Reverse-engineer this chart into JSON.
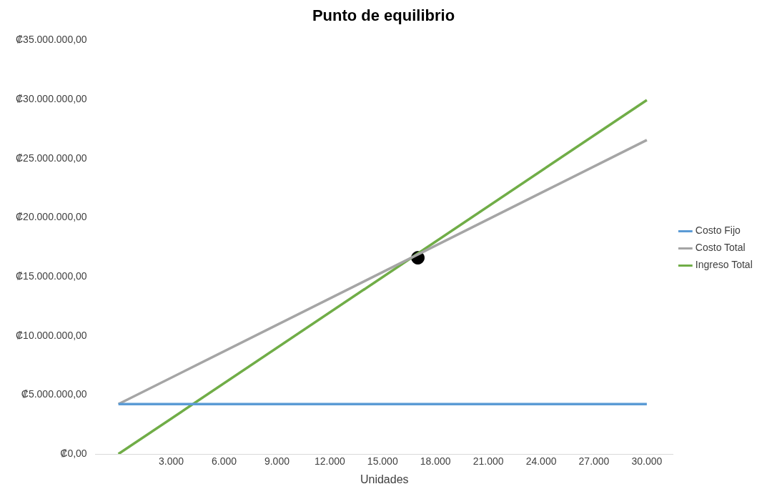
{
  "chart_data": {
    "type": "line",
    "title": "Punto de equilibrio",
    "xlabel": "Unidades",
    "xlim": [
      -1300,
      31500
    ],
    "xticks": [
      {
        "value": 3000,
        "label": "3.000"
      },
      {
        "value": 6000,
        "label": "6.000"
      },
      {
        "value": 9000,
        "label": "9.000"
      },
      {
        "value": 12000,
        "label": "12.000"
      },
      {
        "value": 15000,
        "label": "15.000"
      },
      {
        "value": 18000,
        "label": "18.000"
      },
      {
        "value": 21000,
        "label": "21.000"
      },
      {
        "value": 24000,
        "label": "24.000"
      },
      {
        "value": 27000,
        "label": "27.000"
      },
      {
        "value": 30000,
        "label": "30.000"
      }
    ],
    "ylim": [
      0,
      35000000
    ],
    "yticks": [
      {
        "value": 0,
        "label": "₡0,00"
      },
      {
        "value": 5000000,
        "label": "₡5.000.000,00"
      },
      {
        "value": 10000000,
        "label": "₡10.000.000,00"
      },
      {
        "value": 15000000,
        "label": "₡15.000.000,00"
      },
      {
        "value": 20000000,
        "label": "₡20.000.000,00"
      },
      {
        "value": 25000000,
        "label": "₡25.000.000,00"
      },
      {
        "value": 30000000,
        "label": "₡30.000.000,00"
      },
      {
        "value": 35000000,
        "label": "₡35.000.000,00"
      }
    ],
    "grid": false,
    "legend": "right",
    "marker": "none",
    "line_style": "solid",
    "series": [
      {
        "name": "Costo Fijo",
        "color": "#5b9bd5",
        "x": [
          0,
          30000
        ],
        "values": [
          4220000,
          4220000
        ]
      },
      {
        "name": "Costo Total",
        "color": "#a5a5a5",
        "x": [
          0,
          30000
        ],
        "values": [
          4220000,
          26560000
        ]
      },
      {
        "name": "Ingreso Total",
        "color": "#70ad47",
        "x": [
          0,
          30000
        ],
        "values": [
          0,
          29940000
        ]
      },
      {
        "type": "scatter",
        "color": "#000000",
        "x": [
          17000
        ],
        "values": [
          16600000
        ],
        "marker": "circle"
      }
    ]
  }
}
